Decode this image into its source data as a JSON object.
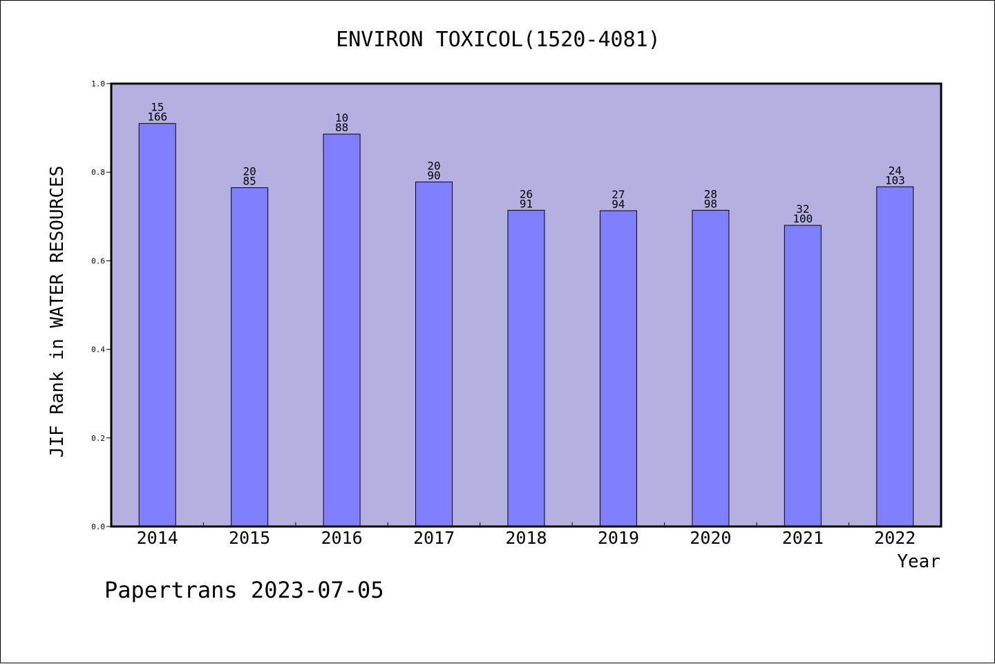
{
  "chart_data": {
    "type": "bar",
    "title": "ENVIRON TOXICOL(1520-4081)",
    "xlabel": "Year",
    "ylabel": "JIF Rank in WATER RESOURCES",
    "ylim": [
      0,
      1.0
    ],
    "yticks": [
      "0.0",
      "0.2",
      "0.4",
      "0.6",
      "0.8",
      "1.0"
    ],
    "categories": [
      "2014",
      "2015",
      "2016",
      "2017",
      "2018",
      "2019",
      "2020",
      "2021",
      "2022"
    ],
    "values": [
      0.91,
      0.765,
      0.886,
      0.778,
      0.714,
      0.713,
      0.714,
      0.68,
      0.767
    ],
    "rank": [
      "15",
      "20",
      "10",
      "20",
      "26",
      "27",
      "28",
      "32",
      "24"
    ],
    "total": [
      "166",
      "85",
      "88",
      "90",
      "91",
      "94",
      "98",
      "100",
      "103"
    ],
    "grid": false,
    "colors": {
      "plot_background": "#b5b0e2",
      "bar_fill": "#8080ff",
      "bar_stroke": "#000000"
    },
    "footer": "Papertrans 2023-07-05"
  }
}
